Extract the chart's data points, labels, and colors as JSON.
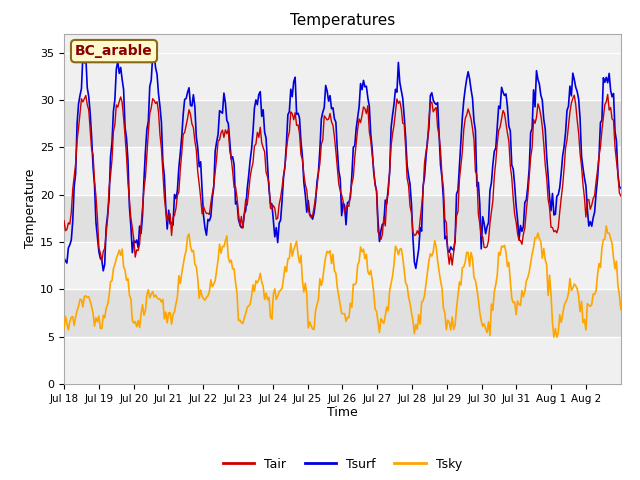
{
  "title": "Temperatures",
  "xlabel": "Time",
  "ylabel": "Temperature",
  "ylim": [
    0,
    37
  ],
  "yticks": [
    0,
    5,
    10,
    15,
    20,
    25,
    30,
    35
  ],
  "annotation_text": "BC_arable",
  "annotation_color": "#8B0000",
  "annotation_bg": "#FFFACD",
  "annotation_border": "#8B6914",
  "line_tair_color": "#CC0000",
  "line_tsurf_color": "#0000DD",
  "line_tsky_color": "#FFA500",
  "legend_labels": [
    "Tair",
    "Tsurf",
    "Tsky"
  ],
  "n_days": 16,
  "hours_per_day": 24,
  "fig_bg_color": "#FFFFFF",
  "plot_bg_light": "#F0F0F0",
  "plot_bg_dark": "#E0E0E0",
  "grid_color": "#FFFFFF",
  "xtick_labels": [
    "Jul 18",
    "Jul 19",
    "Jul 20",
    "Jul 21",
    "Jul 22",
    "Jul 23",
    "Jul 24",
    "Jul 25",
    "Jul 26",
    "Jul 27",
    "Jul 28",
    "Jul 29",
    "Jul 30",
    "Jul 31",
    "Aug 1",
    "Aug 2"
  ]
}
